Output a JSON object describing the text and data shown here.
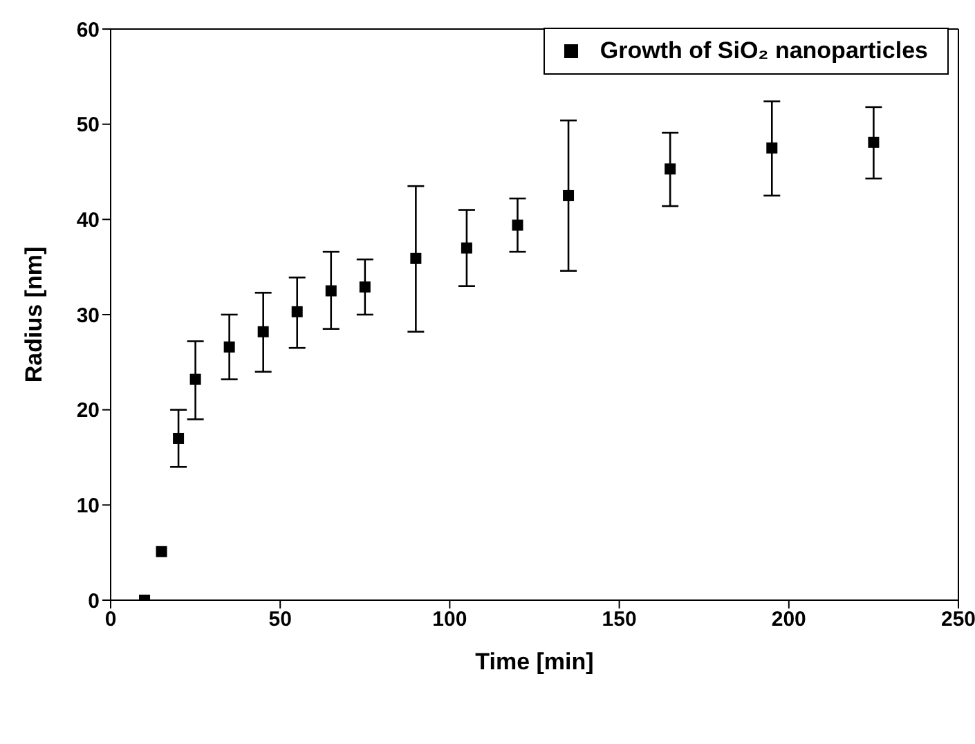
{
  "chart_data": {
    "type": "scatter",
    "xlabel": "Time [min]",
    "ylabel": "Radius [nm]",
    "x": [
      10,
      15,
      20,
      25,
      35,
      45,
      55,
      65,
      75,
      90,
      105,
      120,
      135,
      165,
      195,
      225
    ],
    "series": [
      {
        "name": "Growth of SiO₂ nanoparticles",
        "color": "#000000",
        "values": [
          0,
          5.1,
          17,
          23.2,
          26.6,
          28.2,
          30.3,
          32.5,
          32.9,
          35.9,
          37,
          39.4,
          42.5,
          45.3,
          47.5,
          48.1
        ],
        "errors": [
          null,
          null,
          [
            14,
            20
          ],
          [
            19,
            27.2
          ],
          [
            23.2,
            30
          ],
          [
            24,
            32.3
          ],
          [
            26.5,
            33.9
          ],
          [
            28.5,
            36.6
          ],
          [
            30,
            35.8
          ],
          [
            28.2,
            43.5
          ],
          [
            33,
            41
          ],
          [
            36.6,
            42.2
          ],
          [
            34.6,
            50.4
          ],
          [
            41.4,
            49.1
          ],
          [
            42.5,
            52.4
          ],
          [
            44.3,
            51.8
          ]
        ]
      }
    ],
    "xlim": [
      0,
      250
    ],
    "xticks": [
      0,
      50,
      100,
      150,
      200,
      250
    ],
    "ylim": [
      0,
      60
    ],
    "yticks": [
      0,
      10,
      20,
      30,
      40,
      50,
      60
    ],
    "grid": false,
    "legend": "top right",
    "marker": "square"
  }
}
